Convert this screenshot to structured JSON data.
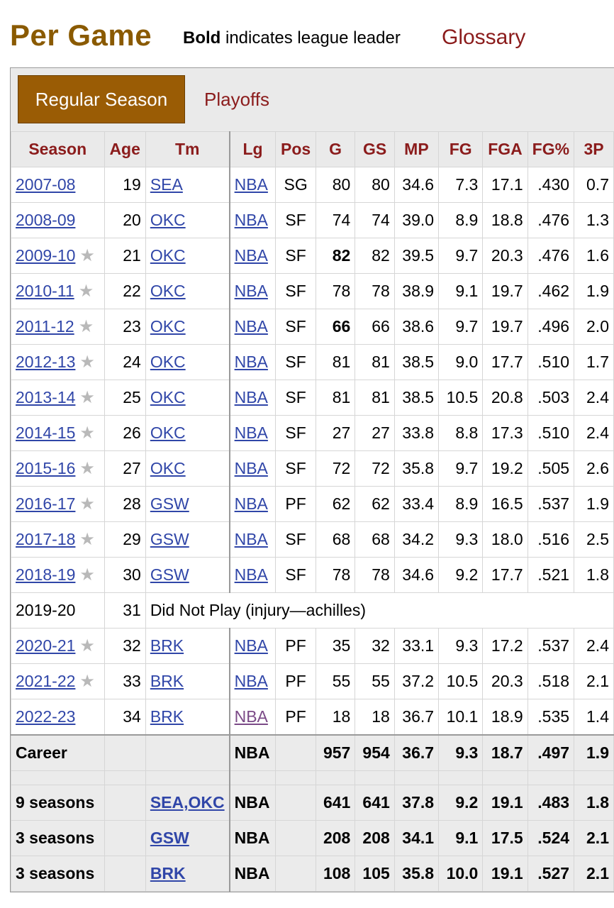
{
  "header": {
    "title": "Per Game",
    "note_bold": "Bold",
    "note_rest": " indicates league leader",
    "glossary": "Glossary"
  },
  "tabs": {
    "active": "Regular Season",
    "other": "Playoffs"
  },
  "columns": [
    "Season",
    "Age",
    "Tm",
    "Lg",
    "Pos",
    "G",
    "GS",
    "MP",
    "FG",
    "FGA",
    "FG%",
    "3P"
  ],
  "star_icon": "★",
  "rows": [
    {
      "season": "2007-08",
      "star": false,
      "age": "19",
      "tm": "SEA",
      "lg": "NBA",
      "pos": "SG",
      "g": "80",
      "gs": "80",
      "mp": "34.6",
      "fg": "7.3",
      "fga": "17.1",
      "fgp": ".430",
      "tp": "0.7"
    },
    {
      "season": "2008-09",
      "star": false,
      "age": "20",
      "tm": "OKC",
      "lg": "NBA",
      "pos": "SF",
      "g": "74",
      "gs": "74",
      "mp": "39.0",
      "fg": "8.9",
      "fga": "18.8",
      "fgp": ".476",
      "tp": "1.3"
    },
    {
      "season": "2009-10",
      "star": true,
      "age": "21",
      "tm": "OKC",
      "lg": "NBA",
      "pos": "SF",
      "g": "82",
      "g_bold": true,
      "gs": "82",
      "mp": "39.5",
      "fg": "9.7",
      "fga": "20.3",
      "fgp": ".476",
      "tp": "1.6"
    },
    {
      "season": "2010-11",
      "star": true,
      "age": "22",
      "tm": "OKC",
      "lg": "NBA",
      "pos": "SF",
      "g": "78",
      "gs": "78",
      "mp": "38.9",
      "fg": "9.1",
      "fga": "19.7",
      "fgp": ".462",
      "tp": "1.9"
    },
    {
      "season": "2011-12",
      "star": true,
      "age": "23",
      "tm": "OKC",
      "lg": "NBA",
      "pos": "SF",
      "g": "66",
      "g_bold": true,
      "gs": "66",
      "mp": "38.6",
      "fg": "9.7",
      "fga": "19.7",
      "fgp": ".496",
      "tp": "2.0"
    },
    {
      "season": "2012-13",
      "star": true,
      "age": "24",
      "tm": "OKC",
      "lg": "NBA",
      "pos": "SF",
      "g": "81",
      "gs": "81",
      "mp": "38.5",
      "fg": "9.0",
      "fga": "17.7",
      "fgp": ".510",
      "tp": "1.7"
    },
    {
      "season": "2013-14",
      "star": true,
      "age": "25",
      "tm": "OKC",
      "lg": "NBA",
      "pos": "SF",
      "g": "81",
      "gs": "81",
      "mp": "38.5",
      "fg": "10.5",
      "fga": "20.8",
      "fgp": ".503",
      "tp": "2.4"
    },
    {
      "season": "2014-15",
      "star": true,
      "age": "26",
      "tm": "OKC",
      "lg": "NBA",
      "pos": "SF",
      "g": "27",
      "gs": "27",
      "mp": "33.8",
      "fg": "8.8",
      "fga": "17.3",
      "fgp": ".510",
      "tp": "2.4"
    },
    {
      "season": "2015-16",
      "star": true,
      "age": "27",
      "tm": "OKC",
      "lg": "NBA",
      "pos": "SF",
      "g": "72",
      "gs": "72",
      "mp": "35.8",
      "fg": "9.7",
      "fga": "19.2",
      "fgp": ".505",
      "tp": "2.6"
    },
    {
      "season": "2016-17",
      "star": true,
      "age": "28",
      "tm": "GSW",
      "lg": "NBA",
      "pos": "PF",
      "g": "62",
      "gs": "62",
      "mp": "33.4",
      "fg": "8.9",
      "fga": "16.5",
      "fgp": ".537",
      "tp": "1.9"
    },
    {
      "season": "2017-18",
      "star": true,
      "age": "29",
      "tm": "GSW",
      "lg": "NBA",
      "pos": "SF",
      "g": "68",
      "gs": "68",
      "mp": "34.2",
      "fg": "9.3",
      "fga": "18.0",
      "fgp": ".516",
      "tp": "2.5"
    },
    {
      "season": "2018-19",
      "star": true,
      "age": "30",
      "tm": "GSW",
      "lg": "NBA",
      "pos": "SF",
      "g": "78",
      "gs": "78",
      "mp": "34.6",
      "fg": "9.2",
      "fga": "17.7",
      "fgp": ".521",
      "tp": "1.8"
    },
    {
      "season": "2019-20",
      "dnp": true,
      "age": "31",
      "note": "Did Not Play (injury—achilles)"
    },
    {
      "season": "2020-21",
      "star": true,
      "age": "32",
      "tm": "BRK",
      "lg": "NBA",
      "pos": "PF",
      "g": "35",
      "gs": "32",
      "mp": "33.1",
      "fg": "9.3",
      "fga": "17.2",
      "fgp": ".537",
      "tp": "2.4"
    },
    {
      "season": "2021-22",
      "star": true,
      "age": "33",
      "tm": "BRK",
      "lg": "NBA",
      "pos": "PF",
      "g": "55",
      "gs": "55",
      "mp": "37.2",
      "fg": "10.5",
      "fga": "20.3",
      "fgp": ".518",
      "tp": "2.1"
    },
    {
      "season": "2022-23",
      "star": false,
      "age": "34",
      "tm": "BRK",
      "lg": "NBA",
      "lg_visited": true,
      "pos": "PF",
      "g": "18",
      "gs": "18",
      "mp": "36.7",
      "fg": "10.1",
      "fga": "18.9",
      "fgp": ".535",
      "tp": "1.4"
    }
  ],
  "career": {
    "label": "Career",
    "lg": "NBA",
    "g": "957",
    "gs": "954",
    "mp": "36.7",
    "fg": "9.3",
    "fga": "18.7",
    "fgp": ".497",
    "tp": "1.9"
  },
  "splits": [
    {
      "label": "9 seasons",
      "tm": "SEA,OKC",
      "lg": "NBA",
      "g": "641",
      "gs": "641",
      "mp": "37.8",
      "fg": "9.2",
      "fga": "19.1",
      "fgp": ".483",
      "tp": "1.8"
    },
    {
      "label": "3 seasons",
      "tm": "GSW",
      "lg": "NBA",
      "g": "208",
      "gs": "208",
      "mp": "34.1",
      "fg": "9.1",
      "fga": "17.5",
      "fgp": ".524",
      "tp": "2.1"
    },
    {
      "label": "3 seasons",
      "tm": "BRK",
      "lg": "NBA",
      "g": "108",
      "gs": "105",
      "mp": "35.8",
      "fg": "10.0",
      "fga": "19.1",
      "fgp": ".527",
      "tp": "2.1"
    }
  ]
}
